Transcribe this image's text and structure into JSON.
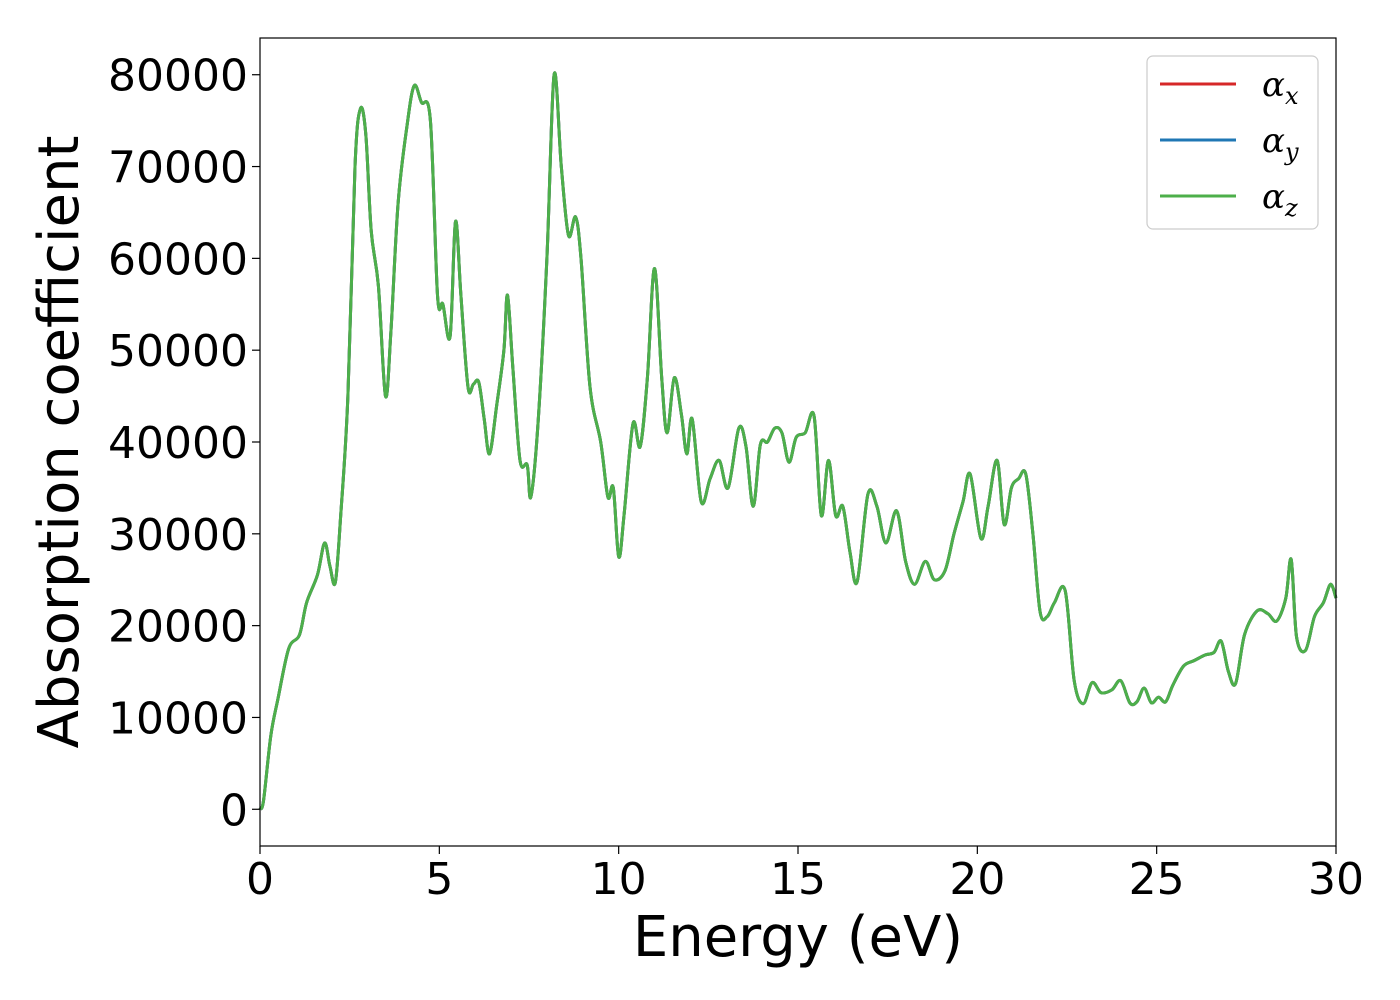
{
  "chart_data": {
    "type": "line",
    "title": "",
    "xlabel": "Energy (eV)",
    "ylabel": "Absorption coefficient",
    "xlim": [
      0,
      30
    ],
    "ylim": [
      -4000,
      84000
    ],
    "xticks": [
      0,
      5,
      10,
      15,
      20,
      25,
      30
    ],
    "yticks": [
      0,
      10000,
      20000,
      30000,
      40000,
      50000,
      60000,
      70000,
      80000
    ],
    "grid": false,
    "legend_position": "top-right",
    "x": [
      0,
      0.1,
      0.3,
      0.5,
      0.8,
      1.1,
      1.3,
      1.6,
      1.8,
      1.95,
      2.1,
      2.25,
      2.45,
      2.65,
      2.8,
      2.95,
      3.1,
      3.3,
      3.5,
      3.65,
      3.85,
      4.1,
      4.3,
      4.5,
      4.75,
      4.95,
      5.1,
      5.3,
      5.45,
      5.6,
      5.8,
      5.95,
      6.1,
      6.25,
      6.4,
      6.6,
      6.8,
      6.9,
      7.05,
      7.25,
      7.45,
      7.55,
      7.75,
      8.0,
      8.2,
      8.4,
      8.6,
      8.8,
      8.95,
      9.2,
      9.5,
      9.7,
      9.85,
      10.0,
      10.15,
      10.4,
      10.6,
      10.8,
      11.0,
      11.2,
      11.35,
      11.55,
      11.75,
      11.9,
      12.05,
      12.3,
      12.55,
      12.8,
      13.05,
      13.35,
      13.55,
      13.75,
      13.95,
      14.15,
      14.35,
      14.55,
      14.75,
      14.95,
      15.2,
      15.45,
      15.65,
      15.85,
      16.05,
      16.25,
      16.45,
      16.65,
      16.95,
      17.2,
      17.45,
      17.75,
      18.0,
      18.25,
      18.55,
      18.8,
      19.1,
      19.35,
      19.6,
      19.8,
      20.1,
      20.3,
      20.55,
      20.75,
      20.95,
      21.15,
      21.35,
      21.55,
      21.75,
      21.95,
      22.15,
      22.45,
      22.7,
      22.95,
      23.2,
      23.45,
      23.75,
      24.0,
      24.25,
      24.45,
      24.65,
      24.85,
      25.05,
      25.25,
      25.45,
      25.75,
      26.05,
      26.35,
      26.6,
      26.8,
      27.0,
      27.2,
      27.45,
      27.8,
      28.1,
      28.35,
      28.6,
      28.75,
      28.9,
      29.15,
      29.4,
      29.65,
      29.85,
      30.0
    ],
    "series": [
      {
        "name": "x",
        "color": "#d62728",
        "values": [
          0,
          1000,
          8000,
          12000,
          17500,
          19000,
          22500,
          25500,
          29000,
          26500,
          24700,
          32000,
          45000,
          70000,
          76300,
          73500,
          63000,
          57000,
          45000,
          52000,
          66000,
          74500,
          78800,
          77000,
          75000,
          56000,
          55000,
          51500,
          64000,
          56000,
          46000,
          46300,
          46500,
          42500,
          38700,
          44000,
          50000,
          56000,
          48000,
          38000,
          37500,
          34000,
          42000,
          60000,
          80000,
          70000,
          62500,
          64500,
          60000,
          46000,
          40000,
          34000,
          35000,
          27500,
          32000,
          42000,
          39500,
          47000,
          58900,
          47000,
          41000,
          47000,
          43000,
          38700,
          42500,
          33500,
          36000,
          38000,
          35000,
          41500,
          39500,
          33000,
          39700,
          40000,
          41500,
          41000,
          37800,
          40500,
          41000,
          42800,
          32000,
          38000,
          32000,
          33000,
          28000,
          24800,
          34300,
          33000,
          29000,
          32500,
          27000,
          24500,
          27000,
          25000,
          26000,
          30000,
          33500,
          36500,
          29500,
          33000,
          38000,
          31000,
          35000,
          36000,
          36500,
          30000,
          21500,
          21000,
          22500,
          23800,
          14000,
          11500,
          13800,
          12700,
          13000,
          14000,
          11600,
          11700,
          13200,
          11600,
          12200,
          11700,
          13500,
          15600,
          16200,
          16800,
          17100,
          18300,
          15000,
          13700,
          19000,
          21600,
          21300,
          20500,
          23000,
          27200,
          18800,
          17300,
          21000,
          22500,
          24500,
          23000
        ]
      },
      {
        "name": "y",
        "color": "#1f77b4",
        "values": [
          0,
          1000,
          8000,
          12000,
          17500,
          19000,
          22500,
          25500,
          29000,
          26500,
          24700,
          32000,
          45000,
          70000,
          76300,
          73500,
          63000,
          57000,
          45000,
          52000,
          66000,
          74500,
          78800,
          77000,
          75000,
          56000,
          55000,
          51500,
          64000,
          56000,
          46000,
          46300,
          46500,
          42500,
          38700,
          44000,
          50000,
          56000,
          48000,
          38000,
          37500,
          34000,
          42000,
          60000,
          80000,
          70000,
          62500,
          64500,
          60000,
          46000,
          40000,
          34000,
          35000,
          27500,
          32000,
          42000,
          39500,
          47000,
          58900,
          47000,
          41000,
          47000,
          43000,
          38700,
          42500,
          33500,
          36000,
          38000,
          35000,
          41500,
          39500,
          33000,
          39700,
          40000,
          41500,
          41000,
          37800,
          40500,
          41000,
          42800,
          32000,
          38000,
          32000,
          33000,
          28000,
          24800,
          34300,
          33000,
          29000,
          32500,
          27000,
          24500,
          27000,
          25000,
          26000,
          30000,
          33500,
          36500,
          29500,
          33000,
          38000,
          31000,
          35000,
          36000,
          36500,
          30000,
          21500,
          21000,
          22500,
          23800,
          14000,
          11500,
          13800,
          12700,
          13000,
          14000,
          11600,
          11700,
          13200,
          11600,
          12200,
          11700,
          13500,
          15600,
          16200,
          16800,
          17100,
          18300,
          15000,
          13700,
          19000,
          21600,
          21300,
          20500,
          23000,
          27200,
          18800,
          17300,
          21000,
          22500,
          24500,
          23000
        ]
      },
      {
        "name": "z",
        "color": "#4daf4a",
        "values": [
          0,
          1000,
          8000,
          12000,
          17500,
          19000,
          22500,
          25500,
          29000,
          26500,
          24700,
          32000,
          45000,
          70000,
          76300,
          73500,
          63000,
          57000,
          45000,
          52000,
          66000,
          74500,
          78800,
          77000,
          75000,
          56000,
          55000,
          51500,
          64000,
          56000,
          46000,
          46300,
          46500,
          42500,
          38700,
          44000,
          50000,
          56000,
          48000,
          38000,
          37500,
          34000,
          42000,
          60000,
          80000,
          70000,
          62500,
          64500,
          60000,
          46000,
          40000,
          34000,
          35000,
          27500,
          32000,
          42000,
          39500,
          47000,
          58900,
          47000,
          41000,
          47000,
          43000,
          38700,
          42500,
          33500,
          36000,
          38000,
          35000,
          41500,
          39500,
          33000,
          39700,
          40000,
          41500,
          41000,
          37800,
          40500,
          41000,
          42800,
          32000,
          38000,
          32000,
          33000,
          28000,
          24800,
          34300,
          33000,
          29000,
          32500,
          27000,
          24500,
          27000,
          25000,
          26000,
          30000,
          33500,
          36500,
          29500,
          33000,
          38000,
          31000,
          35000,
          36000,
          36500,
          30000,
          21500,
          21000,
          22500,
          23800,
          14000,
          11500,
          13800,
          12700,
          13000,
          14000,
          11600,
          11700,
          13200,
          11600,
          12200,
          11700,
          13500,
          15600,
          16200,
          16800,
          17100,
          18300,
          15000,
          13700,
          19000,
          21600,
          21300,
          20500,
          23000,
          27200,
          18800,
          17300,
          21000,
          22500,
          24500,
          23000
        ]
      }
    ],
    "legend": [
      {
        "symbol": "α",
        "sub": "x"
      },
      {
        "symbol": "α",
        "sub": "y"
      },
      {
        "symbol": "α",
        "sub": "z"
      }
    ]
  }
}
